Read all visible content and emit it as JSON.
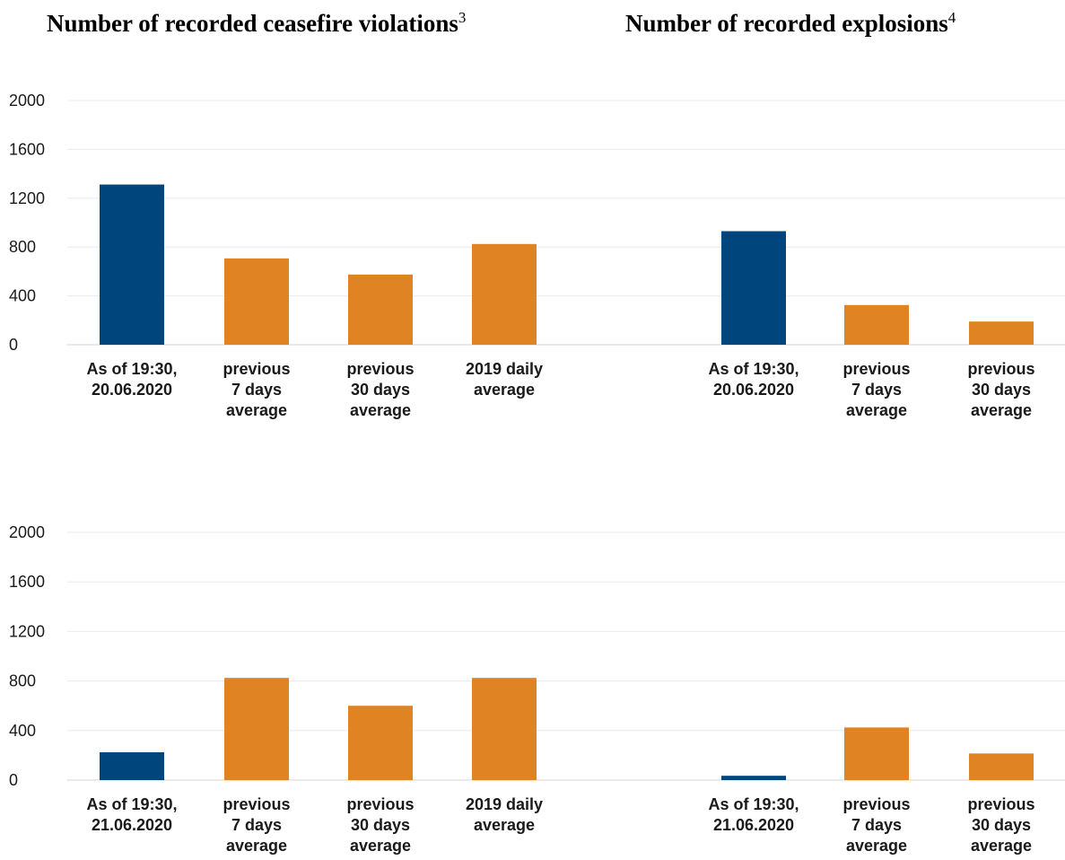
{
  "titles": {
    "left": "Number of recorded ceasefire violations",
    "left_sup": "3",
    "right": "Number of recorded explosions",
    "right_sup": "4"
  },
  "colors": {
    "current": "#00457C",
    "average": "#E08423",
    "grid": "#EBEBEB"
  },
  "chart_data": [
    {
      "type": "bar",
      "title": "Number of recorded ceasefire violations",
      "categories": [
        [
          "As of 19:30,",
          "20.06.2020"
        ],
        [
          "previous",
          "7 days",
          "average"
        ],
        [
          "previous",
          "30 days",
          "average"
        ],
        [
          "2019 daily",
          "average"
        ]
      ],
      "values": [
        1312,
        707,
        575,
        825
      ],
      "bar_colors": [
        "current",
        "average",
        "average",
        "average"
      ],
      "ylim": [
        0,
        2000
      ],
      "yticks": [
        0,
        400,
        800,
        1200,
        1600,
        2000
      ],
      "grid": true
    },
    {
      "type": "bar",
      "title": "Number of recorded explosions",
      "categories": [
        [
          "As of 19:30,",
          "20.06.2020"
        ],
        [
          "previous",
          "7 days",
          "average"
        ],
        [
          "previous",
          "30 days",
          "average"
        ]
      ],
      "values": [
        930,
        325,
        190
      ],
      "bar_colors": [
        "current",
        "average",
        "average"
      ],
      "ylim": [
        0,
        2000
      ],
      "grid": true
    },
    {
      "type": "bar",
      "title": "Number of recorded ceasefire violations",
      "categories": [
        [
          "As of 19:30,",
          "21.06.2020"
        ],
        [
          "previous",
          "7 days",
          "average"
        ],
        [
          "previous",
          "30 days",
          "average"
        ],
        [
          "2019 daily",
          "average"
        ]
      ],
      "values": [
        225,
        825,
        600,
        825
      ],
      "bar_colors": [
        "current",
        "average",
        "average",
        "average"
      ],
      "ylim": [
        0,
        2000
      ],
      "yticks": [
        0,
        400,
        800,
        1200,
        1600,
        2000
      ],
      "grid": true
    },
    {
      "type": "bar",
      "title": "Number of recorded explosions",
      "categories": [
        [
          "As of 19:30,",
          "21.06.2020"
        ],
        [
          "previous",
          "7 days",
          "average"
        ],
        [
          "previous",
          "30 days",
          "average"
        ]
      ],
      "values": [
        35,
        425,
        215
      ],
      "bar_colors": [
        "current",
        "average",
        "average"
      ],
      "ylim": [
        0,
        2000
      ],
      "grid": true
    }
  ]
}
